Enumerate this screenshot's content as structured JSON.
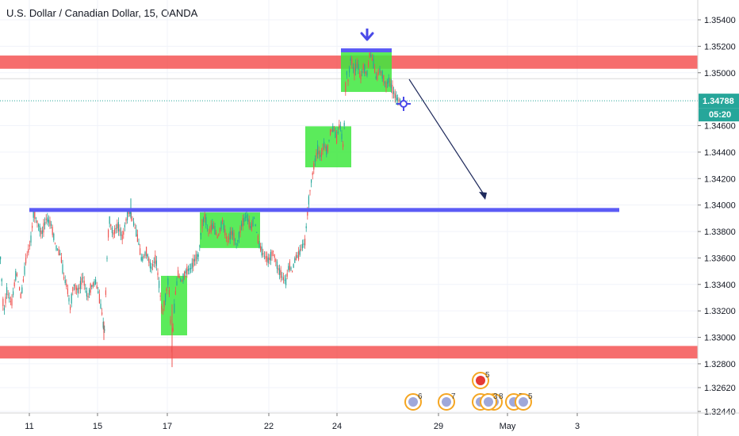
{
  "title": "U.S. Dollar / Canadian Dollar, 15, OANDA",
  "chart_data": {
    "type": "candlestick",
    "symbol": "USDCAD",
    "timeframe": "15",
    "source": "OANDA",
    "ylim": [
      1.3244,
      1.3555
    ],
    "y_ticks": [
      "1.35400",
      "1.35200",
      "1.35000",
      "1.34600",
      "1.34400",
      "1.34200",
      "1.34000",
      "1.33800",
      "1.33600",
      "1.33400",
      "1.33200",
      "1.33000",
      "1.32800",
      "1.32620",
      "1.32440"
    ],
    "x_ticks": [
      "11",
      "15",
      "17",
      "22",
      "24",
      "29",
      "May",
      "3"
    ],
    "last_price": "1.34788",
    "countdown": "05:20",
    "event_badges": [
      "5",
      "6",
      "7",
      "3",
      "8",
      "5",
      "5",
      "3"
    ],
    "colors": {
      "up": "#26a69a",
      "down": "#ef5350",
      "zone": "#f44848",
      "box": "#3ee83e",
      "level": "#5b5bf5",
      "price_line": "#26a69a"
    },
    "price_path": [
      [
        0,
        1.336
      ],
      [
        4,
        1.3318
      ],
      [
        8,
        1.3335
      ],
      [
        14,
        1.3325
      ],
      [
        20,
        1.335
      ],
      [
        26,
        1.333
      ],
      [
        32,
        1.3358
      ],
      [
        38,
        1.3372
      ],
      [
        42,
        1.3395
      ],
      [
        46,
        1.3388
      ],
      [
        52,
        1.3378
      ],
      [
        58,
        1.339
      ],
      [
        64,
        1.3385
      ],
      [
        70,
        1.3368
      ],
      [
        76,
        1.3362
      ],
      [
        80,
        1.3345
      ],
      [
        84,
        1.3338
      ],
      [
        88,
        1.3322
      ],
      [
        92,
        1.334
      ],
      [
        98,
        1.3335
      ],
      [
        104,
        1.3345
      ],
      [
        110,
        1.333
      ],
      [
        114,
        1.3338
      ],
      [
        120,
        1.3342
      ],
      [
        124,
        1.3332
      ],
      [
        128,
        1.3318
      ],
      [
        131,
        1.3302
      ],
      [
        134,
        1.3355
      ],
      [
        137,
        1.339
      ],
      [
        142,
        1.3378
      ],
      [
        148,
        1.3385
      ],
      [
        154,
        1.3375
      ],
      [
        158,
        1.3388
      ],
      [
        162,
        1.3396
      ],
      [
        166,
        1.339
      ],
      [
        170,
        1.3382
      ],
      [
        174,
        1.3372
      ],
      [
        178,
        1.3358
      ],
      [
        184,
        1.3365
      ],
      [
        190,
        1.3352
      ],
      [
        196,
        1.336
      ],
      [
        200,
        1.334
      ],
      [
        204,
        1.3318
      ],
      [
        208,
        1.333
      ],
      [
        212,
        1.3345
      ],
      [
        216,
        1.329
      ],
      [
        220,
        1.333
      ],
      [
        224,
        1.3348
      ],
      [
        228,
        1.3342
      ],
      [
        234,
        1.335
      ],
      [
        240,
        1.3352
      ],
      [
        246,
        1.336
      ],
      [
        250,
        1.3362
      ],
      [
        254,
        1.3385
      ],
      [
        258,
        1.3392
      ],
      [
        262,
        1.3378
      ],
      [
        268,
        1.3385
      ],
      [
        274,
        1.3375
      ],
      [
        280,
        1.3388
      ],
      [
        286,
        1.3372
      ],
      [
        292,
        1.338
      ],
      [
        298,
        1.337
      ],
      [
        304,
        1.3385
      ],
      [
        310,
        1.3392
      ],
      [
        316,
        1.3382
      ],
      [
        320,
        1.339
      ],
      [
        326,
        1.337
      ],
      [
        332,
        1.3362
      ],
      [
        338,
        1.3358
      ],
      [
        344,
        1.3365
      ],
      [
        350,
        1.3352
      ],
      [
        356,
        1.3345
      ],
      [
        360,
        1.3342
      ],
      [
        364,
        1.3355
      ],
      [
        368,
        1.335
      ],
      [
        372,
        1.336
      ],
      [
        376,
        1.3362
      ],
      [
        380,
        1.3368
      ],
      [
        384,
        1.3372
      ],
      [
        388,
        1.34
      ],
      [
        392,
        1.3418
      ],
      [
        396,
        1.3432
      ],
      [
        400,
        1.3442
      ],
      [
        404,
        1.3436
      ],
      [
        408,
        1.3446
      ],
      [
        412,
        1.344
      ],
      [
        416,
        1.3455
      ],
      [
        420,
        1.3458
      ],
      [
        424,
        1.345
      ],
      [
        428,
        1.3462
      ],
      [
        432,
        1.3445
      ],
      [
        434,
        1.3465
      ],
      [
        436,
        1.3505
      ],
      [
        438,
        1.3492
      ],
      [
        442,
        1.3512
      ],
      [
        446,
        1.35
      ],
      [
        450,
        1.3508
      ],
      [
        454,
        1.3496
      ],
      [
        458,
        1.3505
      ],
      [
        462,
        1.3498
      ],
      [
        466,
        1.3515
      ],
      [
        470,
        1.3508
      ],
      [
        474,
        1.3495
      ],
      [
        478,
        1.3502
      ],
      [
        482,
        1.3498
      ],
      [
        486,
        1.349
      ],
      [
        490,
        1.3495
      ],
      [
        494,
        1.3488
      ],
      [
        498,
        1.3482
      ],
      [
        502,
        1.3479
      ]
    ],
    "support_resistance_zones": [
      {
        "top": 1.3513,
        "bottom": 1.3503
      },
      {
        "top": 1.32935,
        "bottom": 1.3284
      }
    ],
    "levels": [
      {
        "price": 1.33963
      },
      {
        "price": 1.35169
      }
    ]
  }
}
